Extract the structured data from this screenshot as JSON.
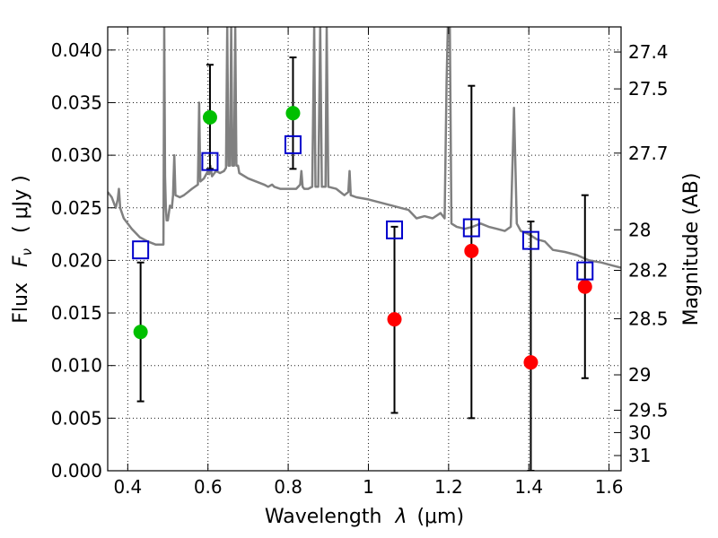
{
  "chart_data": {
    "type": "scatter",
    "xlabel_text": "Wavelength",
    "xlabel_symbol": "λ",
    "xlabel_unit": "(μm)",
    "ylabel_text": "Flux",
    "ylabel_symbol": "F",
    "ylabel_sub": "ν",
    "ylabel_unit": "( μJy )",
    "y2label": "Magnitude (AB)",
    "xlim": [
      0.35,
      1.63
    ],
    "ylim": [
      0.0,
      0.0422
    ],
    "grid": true,
    "x_ticks": [
      {
        "value": 0.4,
        "label": "0.4"
      },
      {
        "value": 0.6,
        "label": "0.6"
      },
      {
        "value": 0.8,
        "label": "0.8"
      },
      {
        "value": 1.0,
        "label": "1"
      },
      {
        "value": 1.2,
        "label": "1.2"
      },
      {
        "value": 1.4,
        "label": "1.4"
      },
      {
        "value": 1.6,
        "label": "1.6"
      }
    ],
    "y_ticks": [
      {
        "value": 0.0,
        "label": "0.000"
      },
      {
        "value": 0.005,
        "label": "0.005"
      },
      {
        "value": 0.01,
        "label": "0.010"
      },
      {
        "value": 0.015,
        "label": "0.015"
      },
      {
        "value": 0.02,
        "label": "0.020"
      },
      {
        "value": 0.025,
        "label": "0.025"
      },
      {
        "value": 0.03,
        "label": "0.030"
      },
      {
        "value": 0.035,
        "label": "0.035"
      },
      {
        "value": 0.04,
        "label": "0.040"
      }
    ],
    "y2_ticks": [
      {
        "value": 27.4,
        "label": "27.4"
      },
      {
        "value": 27.5,
        "label": "27.5"
      },
      {
        "value": 27.7,
        "label": "27.7"
      },
      {
        "value": 28.0,
        "label": "28"
      },
      {
        "value": 28.2,
        "label": "28.2"
      },
      {
        "value": 28.5,
        "label": "28.5"
      },
      {
        "value": 29.0,
        "label": "29"
      },
      {
        "value": 29.5,
        "label": "29.5"
      },
      {
        "value": 30.0,
        "label": "30"
      },
      {
        "value": 31.0,
        "label": "31"
      }
    ],
    "series": [
      {
        "kind": "line",
        "color": "#808080",
        "points": [
          [
            0.35,
            0.0265
          ],
          [
            0.36,
            0.026
          ],
          [
            0.37,
            0.025
          ],
          [
            0.375,
            0.0258
          ],
          [
            0.378,
            0.0268
          ],
          [
            0.381,
            0.025
          ],
          [
            0.39,
            0.024
          ],
          [
            0.41,
            0.023
          ],
          [
            0.43,
            0.0222
          ],
          [
            0.45,
            0.0218
          ],
          [
            0.47,
            0.0215
          ],
          [
            0.485,
            0.0215
          ],
          [
            0.489,
            0.0215
          ],
          [
            0.491,
            0.0422
          ],
          [
            0.493,
            0.028
          ],
          [
            0.495,
            0.025
          ],
          [
            0.497,
            0.0238
          ],
          [
            0.5,
            0.0238
          ],
          [
            0.505,
            0.0252
          ],
          [
            0.51,
            0.025
          ],
          [
            0.513,
            0.0262
          ],
          [
            0.516,
            0.03
          ],
          [
            0.519,
            0.0262
          ],
          [
            0.53,
            0.026
          ],
          [
            0.54,
            0.0262
          ],
          [
            0.55,
            0.0265
          ],
          [
            0.56,
            0.0268
          ],
          [
            0.575,
            0.0272
          ],
          [
            0.578,
            0.035
          ],
          [
            0.581,
            0.0275
          ],
          [
            0.59,
            0.0278
          ],
          [
            0.6,
            0.0285
          ],
          [
            0.603,
            0.0282
          ],
          [
            0.606,
            0.029
          ],
          [
            0.61,
            0.028
          ],
          [
            0.62,
            0.0285
          ],
          [
            0.63,
            0.0283
          ],
          [
            0.64,
            0.0285
          ],
          [
            0.645,
            0.0288
          ],
          [
            0.648,
            0.0422
          ],
          [
            0.651,
            0.029
          ],
          [
            0.655,
            0.029
          ],
          [
            0.658,
            0.0422
          ],
          [
            0.661,
            0.029
          ],
          [
            0.665,
            0.029
          ],
          [
            0.668,
            0.0422
          ],
          [
            0.671,
            0.029
          ],
          [
            0.675,
            0.029
          ],
          [
            0.678,
            0.0283
          ],
          [
            0.7,
            0.0278
          ],
          [
            0.72,
            0.0275
          ],
          [
            0.74,
            0.0272
          ],
          [
            0.75,
            0.027
          ],
          [
            0.76,
            0.0272
          ],
          [
            0.765,
            0.027
          ],
          [
            0.78,
            0.0268
          ],
          [
            0.8,
            0.0268
          ],
          [
            0.82,
            0.0268
          ],
          [
            0.83,
            0.0272
          ],
          [
            0.833,
            0.0285
          ],
          [
            0.836,
            0.027
          ],
          [
            0.84,
            0.0268
          ],
          [
            0.85,
            0.0268
          ],
          [
            0.86,
            0.027
          ],
          [
            0.865,
            0.0422
          ],
          [
            0.868,
            0.027
          ],
          [
            0.875,
            0.027
          ],
          [
            0.88,
            0.0422
          ],
          [
            0.884,
            0.027
          ],
          [
            0.893,
            0.027
          ],
          [
            0.896,
            0.0422
          ],
          [
            0.9,
            0.027
          ],
          [
            0.92,
            0.0268
          ],
          [
            0.94,
            0.0262
          ],
          [
            0.95,
            0.0265
          ],
          [
            0.953,
            0.0285
          ],
          [
            0.956,
            0.0262
          ],
          [
            0.97,
            0.026
          ],
          [
            1.0,
            0.0258
          ],
          [
            1.03,
            0.0255
          ],
          [
            1.06,
            0.0252
          ],
          [
            1.08,
            0.025
          ],
          [
            1.1,
            0.0248
          ],
          [
            1.12,
            0.024
          ],
          [
            1.14,
            0.0242
          ],
          [
            1.16,
            0.024
          ],
          [
            1.18,
            0.0245
          ],
          [
            1.19,
            0.024
          ],
          [
            1.195,
            0.037
          ],
          [
            1.198,
            0.0422
          ],
          [
            1.203,
            0.0422
          ],
          [
            1.207,
            0.0235
          ],
          [
            1.22,
            0.0232
          ],
          [
            1.24,
            0.023
          ],
          [
            1.26,
            0.0232
          ],
          [
            1.28,
            0.0235
          ],
          [
            1.3,
            0.0232
          ],
          [
            1.32,
            0.023
          ],
          [
            1.34,
            0.0228
          ],
          [
            1.355,
            0.0232
          ],
          [
            1.36,
            0.03
          ],
          [
            1.363,
            0.0345
          ],
          [
            1.366,
            0.03
          ],
          [
            1.37,
            0.0235
          ],
          [
            1.38,
            0.0228
          ],
          [
            1.4,
            0.0225
          ],
          [
            1.42,
            0.022
          ],
          [
            1.44,
            0.0218
          ],
          [
            1.46,
            0.021
          ],
          [
            1.49,
            0.0208
          ],
          [
            1.52,
            0.0205
          ],
          [
            1.55,
            0.02
          ],
          [
            1.58,
            0.0198
          ],
          [
            1.61,
            0.0195
          ],
          [
            1.63,
            0.0193
          ]
        ]
      },
      {
        "kind": "points",
        "marker": "circle",
        "color": "#00bf00",
        "points": [
          {
            "x": 0.432,
            "y": 0.0132,
            "yerr_low": 0.0066,
            "yerr_high": 0.0198
          },
          {
            "x": 0.605,
            "y": 0.0336,
            "yerr_low": 0.0287,
            "yerr_high": 0.0386
          },
          {
            "x": 0.812,
            "y": 0.034,
            "yerr_low": 0.0287,
            "yerr_high": 0.0393
          }
        ]
      },
      {
        "kind": "points",
        "marker": "circle",
        "color": "#ff0000",
        "points": [
          {
            "x": 1.065,
            "y": 0.0144,
            "yerr_low": 0.0055,
            "yerr_high": 0.0232
          },
          {
            "x": 1.257,
            "y": 0.0209,
            "yerr_low": 0.005,
            "yerr_high": 0.0366
          },
          {
            "x": 1.405,
            "y": 0.0103,
            "yerr_low": 0.0,
            "yerr_high": 0.0237
          },
          {
            "x": 1.54,
            "y": 0.0175,
            "yerr_low": 0.0088,
            "yerr_high": 0.0262
          }
        ]
      },
      {
        "kind": "points",
        "marker": "square",
        "color": "#0000cc",
        "points": [
          {
            "x": 0.432,
            "y": 0.021
          },
          {
            "x": 0.605,
            "y": 0.0294
          },
          {
            "x": 0.812,
            "y": 0.031
          },
          {
            "x": 1.065,
            "y": 0.0229
          },
          {
            "x": 1.257,
            "y": 0.0231
          },
          {
            "x": 1.405,
            "y": 0.0219
          },
          {
            "x": 1.54,
            "y": 0.019
          }
        ]
      }
    ]
  }
}
